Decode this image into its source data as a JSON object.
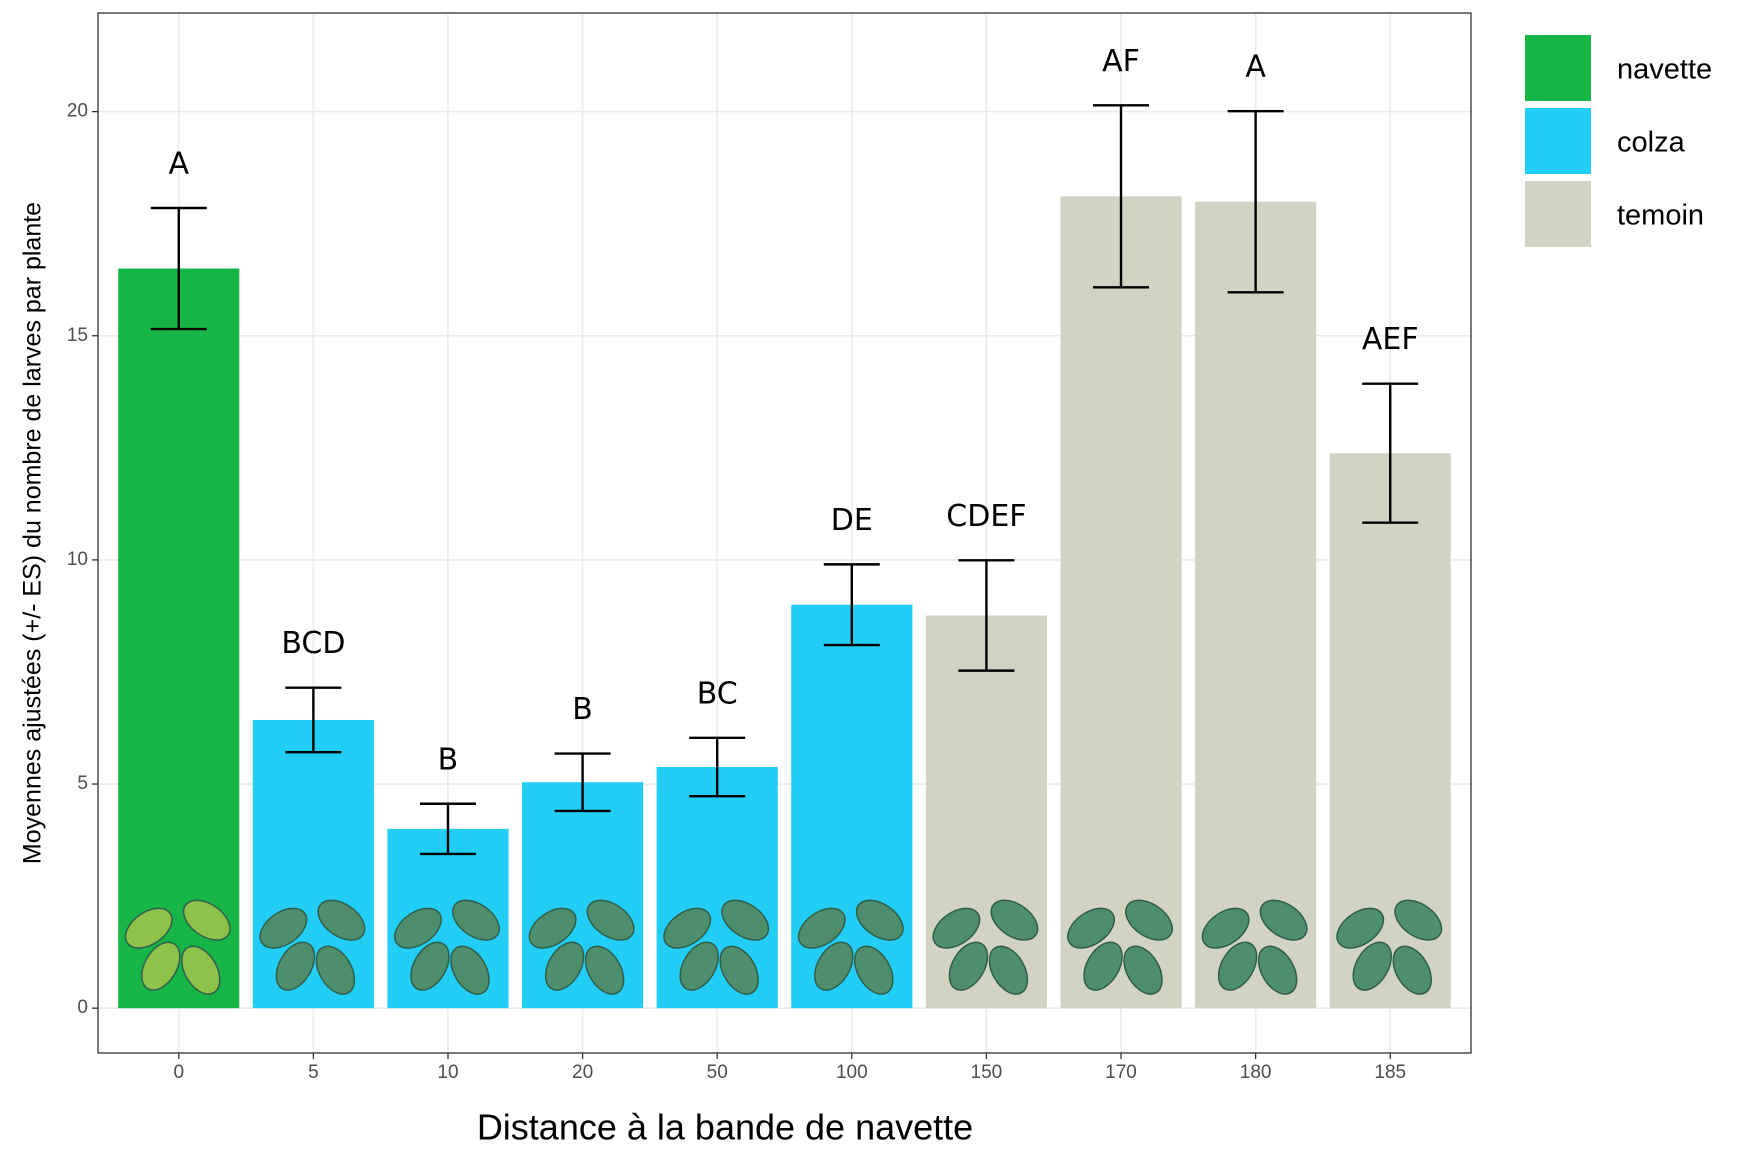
{
  "chart_data": {
    "type": "bar",
    "x_label": "Distance à la bande de navette",
    "y_label": "Moyennes ajustées (+/- ES) du nombre de larves par plante",
    "categories": [
      "0",
      "5",
      "10",
      "20",
      "50",
      "100",
      "150",
      "170",
      "180",
      "185"
    ],
    "series": [
      {
        "name": "navette",
        "color": "#16b545",
        "values": [
          16.5,
          null,
          null,
          null,
          null,
          null,
          null,
          null,
          null,
          null
        ],
        "errors": [
          1.35,
          null,
          null,
          null,
          null,
          null,
          null,
          null,
          null,
          null
        ]
      },
      {
        "name": "colza",
        "color": "#22cdf6",
        "values": [
          null,
          6.43,
          4.0,
          5.04,
          5.38,
          9.0,
          null,
          null,
          null,
          null
        ],
        "errors": [
          null,
          0.72,
          0.56,
          0.64,
          0.65,
          0.9,
          null,
          null,
          null,
          null
        ]
      },
      {
        "name": "temoin",
        "color": "#d3d3c3",
        "values": [
          null,
          null,
          null,
          null,
          null,
          null,
          8.76,
          18.11,
          17.99,
          12.38
        ],
        "errors": [
          null,
          null,
          null,
          null,
          null,
          null,
          1.23,
          2.03,
          2.02,
          1.55
        ]
      }
    ],
    "letters": [
      "A",
      "BCD",
      "B",
      "B",
      "BC",
      "DE",
      "CDEF",
      "AF",
      "A",
      "AEF"
    ],
    "ylim": [
      -1,
      22.2
    ],
    "yticks": [
      0,
      5,
      10,
      15,
      20
    ],
    "grid": true
  }
}
